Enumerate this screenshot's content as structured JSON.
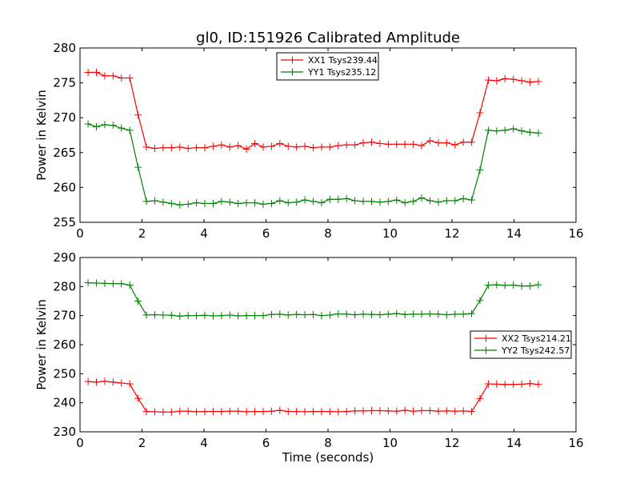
{
  "chart_data": [
    {
      "type": "line",
      "title": "gl0, ID:151926 Calibrated Amplitude",
      "xlabel": "",
      "ylabel": "Power in Kelvin",
      "xlim": [
        0,
        16
      ],
      "ylim": [
        255,
        280
      ],
      "xticks": [
        "0",
        "2",
        "4",
        "6",
        "8",
        "10",
        "12",
        "14",
        "16"
      ],
      "yticks": [
        "255",
        "260",
        "265",
        "270",
        "275",
        "280"
      ],
      "legend_position": "top-center",
      "x_start": 0.26,
      "x_step": 0.269,
      "series": [
        {
          "name": "XX1 Tsys239.44",
          "color": "#ff0000",
          "values": [
            276.5,
            276.5,
            276.0,
            276.0,
            275.7,
            275.7,
            270.4,
            265.8,
            265.6,
            265.7,
            265.7,
            265.8,
            265.6,
            265.7,
            265.7,
            265.9,
            266.1,
            265.8,
            266.0,
            265.5,
            266.3,
            265.8,
            265.9,
            266.3,
            265.9,
            265.8,
            265.9,
            265.7,
            265.8,
            265.8,
            266.0,
            266.1,
            266.1,
            266.4,
            266.5,
            266.3,
            266.2,
            266.2,
            266.2,
            266.2,
            266.0,
            266.7,
            266.4,
            266.4,
            266.1,
            266.5,
            266.5,
            270.7,
            275.4,
            275.3,
            275.6,
            275.5,
            275.3,
            275.1,
            275.2
          ]
        },
        {
          "name": "YY1 Tsys235.12",
          "color": "#008000",
          "values": [
            269.1,
            268.7,
            269.0,
            268.9,
            268.5,
            268.2,
            262.9,
            258.0,
            258.1,
            257.9,
            257.7,
            257.5,
            257.6,
            257.8,
            257.7,
            257.7,
            258.0,
            257.9,
            257.7,
            257.8,
            257.8,
            257.6,
            257.7,
            258.1,
            257.8,
            257.9,
            258.2,
            258.0,
            257.8,
            258.3,
            258.3,
            258.4,
            258.1,
            258.0,
            258.0,
            257.9,
            258.0,
            258.2,
            257.8,
            258.0,
            258.5,
            258.1,
            257.9,
            258.1,
            258.1,
            258.4,
            258.2,
            262.5,
            268.2,
            268.1,
            268.2,
            268.4,
            268.1,
            267.9,
            267.8
          ]
        }
      ]
    },
    {
      "type": "line",
      "title": "",
      "xlabel": "Time (seconds)",
      "ylabel": "Power in Kelvin",
      "xlim": [
        0,
        16
      ],
      "ylim": [
        230,
        290
      ],
      "xticks": [
        "0",
        "2",
        "4",
        "6",
        "8",
        "10",
        "12",
        "14",
        "16"
      ],
      "yticks": [
        "230",
        "240",
        "250",
        "260",
        "270",
        "280",
        "290"
      ],
      "legend_position": "center-right",
      "x_start": 0.26,
      "x_step": 0.269,
      "series": [
        {
          "name": "XX2 Tsys214.21",
          "color": "#ff0000",
          "values": [
            247.3,
            247.1,
            247.4,
            247.1,
            246.8,
            246.5,
            241.5,
            237.0,
            236.9,
            236.8,
            236.8,
            237.1,
            237.1,
            236.9,
            237.0,
            237.0,
            237.0,
            237.1,
            237.1,
            236.9,
            237.0,
            237.0,
            237.1,
            237.4,
            237.0,
            237.0,
            236.9,
            237.0,
            237.0,
            237.0,
            236.9,
            237.0,
            237.2,
            237.2,
            237.3,
            237.3,
            237.2,
            237.1,
            237.4,
            237.1,
            237.3,
            237.3,
            237.1,
            237.2,
            237.1,
            237.2,
            237.0,
            241.5,
            246.5,
            246.4,
            246.3,
            246.3,
            246.4,
            246.6,
            246.3
          ]
        },
        {
          "name": "YY2 Tsys242.57",
          "color": "#008000",
          "values": [
            281.3,
            281.2,
            281.1,
            281.0,
            281.0,
            280.5,
            275.0,
            270.2,
            270.3,
            270.2,
            270.1,
            269.8,
            270.0,
            270.0,
            270.1,
            269.9,
            270.0,
            270.2,
            269.9,
            270.0,
            270.0,
            270.0,
            270.4,
            270.5,
            270.2,
            270.4,
            270.3,
            270.4,
            270.0,
            270.2,
            270.6,
            270.5,
            270.3,
            270.5,
            270.4,
            270.3,
            270.5,
            270.7,
            270.4,
            270.5,
            270.5,
            270.6,
            270.5,
            270.3,
            270.5,
            270.5,
            270.7,
            275.2,
            280.5,
            280.6,
            280.4,
            280.5,
            280.2,
            280.2,
            280.6
          ]
        }
      ]
    }
  ]
}
